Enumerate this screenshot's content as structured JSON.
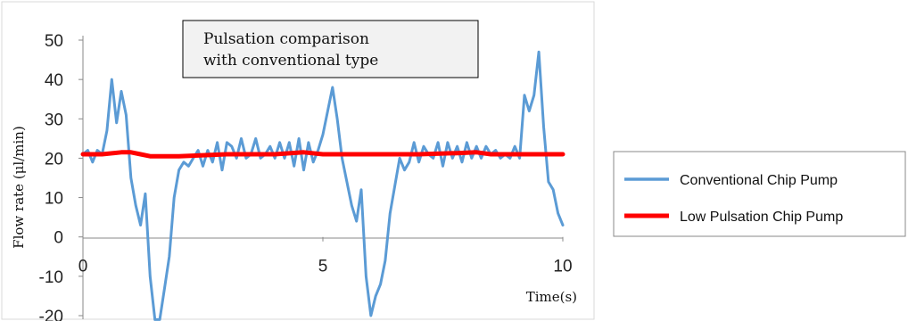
{
  "chart_data": {
    "type": "line",
    "title": "Pulsation comparison with conventional type",
    "title_lines": [
      "Pulsation comparison",
      "with conventional type"
    ],
    "xlabel": "Time(s)",
    "ylabel": "Flow rate (μl/min)",
    "xlim": [
      0,
      10
    ],
    "ylim": [
      -20,
      50
    ],
    "x_ticks": [
      "0",
      "5",
      "10"
    ],
    "x_tick_values": [
      0,
      5,
      10
    ],
    "y_ticks": [
      "-20",
      "-10",
      "0",
      "10",
      "20",
      "30",
      "40",
      "50"
    ],
    "y_tick_values": [
      -20,
      -10,
      0,
      10,
      20,
      30,
      40,
      50
    ],
    "grid": false,
    "legend_position": "right",
    "series": [
      {
        "name": "Conventional Chip Pump",
        "color": "#5b9bd5",
        "points": [
          [
            0.0,
            21
          ],
          [
            0.1,
            22
          ],
          [
            0.2,
            19
          ],
          [
            0.3,
            22
          ],
          [
            0.4,
            21
          ],
          [
            0.5,
            27
          ],
          [
            0.6,
            40
          ],
          [
            0.7,
            29
          ],
          [
            0.8,
            37
          ],
          [
            0.9,
            31
          ],
          [
            1.0,
            15
          ],
          [
            1.1,
            8
          ],
          [
            1.2,
            3
          ],
          [
            1.3,
            11
          ],
          [
            1.4,
            -10
          ],
          [
            1.5,
            -21
          ],
          [
            1.6,
            -21
          ],
          [
            1.7,
            -13
          ],
          [
            1.8,
            -5
          ],
          [
            1.9,
            10
          ],
          [
            2.0,
            17
          ],
          [
            2.1,
            19
          ],
          [
            2.2,
            18
          ],
          [
            2.3,
            20
          ],
          [
            2.4,
            22
          ],
          [
            2.5,
            18
          ],
          [
            2.6,
            22
          ],
          [
            2.7,
            19
          ],
          [
            2.8,
            24
          ],
          [
            2.9,
            17
          ],
          [
            3.0,
            24
          ],
          [
            3.1,
            23
          ],
          [
            3.2,
            20
          ],
          [
            3.3,
            25
          ],
          [
            3.4,
            20
          ],
          [
            3.5,
            21
          ],
          [
            3.6,
            25
          ],
          [
            3.7,
            20
          ],
          [
            3.8,
            21
          ],
          [
            3.9,
            23
          ],
          [
            4.0,
            20
          ],
          [
            4.1,
            24
          ],
          [
            4.2,
            20
          ],
          [
            4.3,
            24
          ],
          [
            4.4,
            18
          ],
          [
            4.5,
            25
          ],
          [
            4.6,
            17
          ],
          [
            4.7,
            24
          ],
          [
            4.8,
            19
          ],
          [
            4.9,
            22
          ],
          [
            5.0,
            26
          ],
          [
            5.1,
            32
          ],
          [
            5.2,
            38
          ],
          [
            5.3,
            30
          ],
          [
            5.4,
            20
          ],
          [
            5.5,
            14
          ],
          [
            5.6,
            8
          ],
          [
            5.7,
            4
          ],
          [
            5.8,
            12
          ],
          [
            5.9,
            -10
          ],
          [
            6.0,
            -20
          ],
          [
            6.1,
            -15
          ],
          [
            6.2,
            -12
          ],
          [
            6.3,
            -6
          ],
          [
            6.4,
            6
          ],
          [
            6.5,
            13
          ],
          [
            6.6,
            20
          ],
          [
            6.7,
            17
          ],
          [
            6.8,
            19
          ],
          [
            6.9,
            24
          ],
          [
            7.0,
            19
          ],
          [
            7.1,
            23
          ],
          [
            7.2,
            21
          ],
          [
            7.3,
            20
          ],
          [
            7.4,
            24
          ],
          [
            7.5,
            18
          ],
          [
            7.6,
            24
          ],
          [
            7.7,
            20
          ],
          [
            7.8,
            23
          ],
          [
            7.9,
            19
          ],
          [
            8.0,
            24
          ],
          [
            8.1,
            20
          ],
          [
            8.2,
            23
          ],
          [
            8.3,
            20
          ],
          [
            8.4,
            23
          ],
          [
            8.5,
            21
          ],
          [
            8.6,
            22
          ],
          [
            8.7,
            20
          ],
          [
            8.8,
            21
          ],
          [
            8.9,
            20
          ],
          [
            9.0,
            23
          ],
          [
            9.1,
            20
          ],
          [
            9.2,
            36
          ],
          [
            9.3,
            32
          ],
          [
            9.4,
            36
          ],
          [
            9.5,
            47
          ],
          [
            9.6,
            28
          ],
          [
            9.7,
            14
          ],
          [
            9.8,
            12
          ],
          [
            9.9,
            6
          ],
          [
            10.0,
            3
          ]
        ]
      },
      {
        "name": "Low Pulsation Chip Pump",
        "color": "#ff0000",
        "points": [
          [
            0.0,
            21
          ],
          [
            0.4,
            21
          ],
          [
            0.8,
            21.5
          ],
          [
            1.0,
            21.5
          ],
          [
            1.2,
            21
          ],
          [
            1.4,
            20.5
          ],
          [
            2.0,
            20.5
          ],
          [
            3.0,
            21
          ],
          [
            4.0,
            21
          ],
          [
            4.6,
            21.5
          ],
          [
            5.0,
            21
          ],
          [
            6.0,
            21
          ],
          [
            7.0,
            21
          ],
          [
            7.8,
            21.3
          ],
          [
            8.2,
            21.5
          ],
          [
            8.5,
            21
          ],
          [
            9.0,
            21
          ],
          [
            10.0,
            21
          ]
        ]
      }
    ]
  }
}
